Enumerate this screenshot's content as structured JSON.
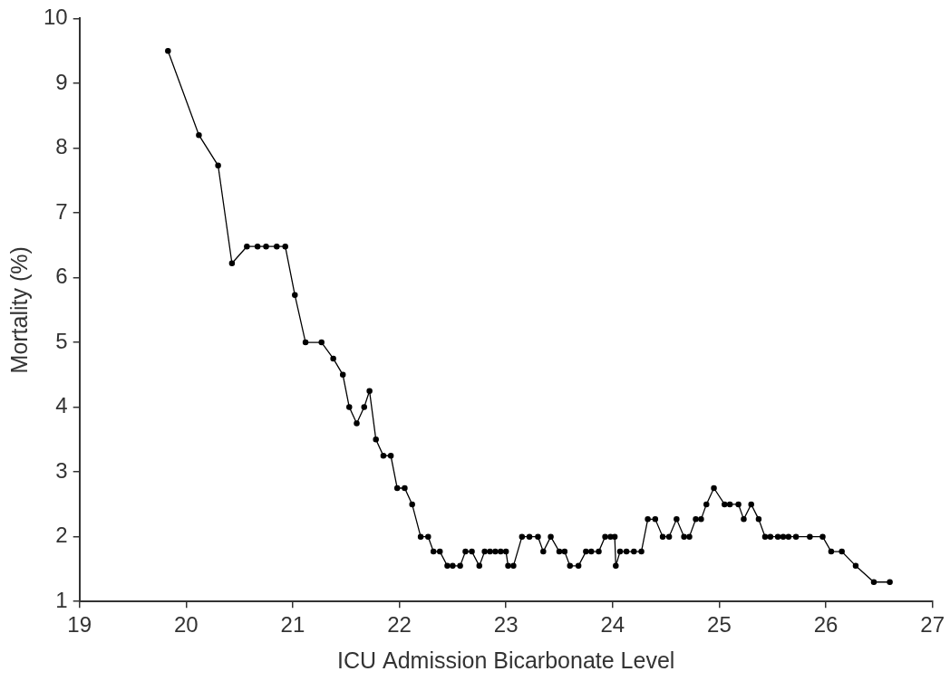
{
  "chart_data": {
    "type": "line",
    "x_label": "ICU Admission Bicarbonate Level",
    "y_label": "Mortality (%)",
    "xlim": [
      19,
      27
    ],
    "xticks": [
      19,
      20,
      21,
      22,
      23,
      24,
      25,
      26,
      27
    ],
    "ylim": [
      1,
      10
    ],
    "yticks": [
      1,
      2,
      3,
      4,
      5,
      6,
      7,
      8,
      9,
      10
    ],
    "grid": false,
    "color": "#000000",
    "marker": "circle",
    "line_style": "solid",
    "x": [
      19.83,
      20.12,
      20.3,
      20.43,
      20.57,
      20.67,
      20.75,
      20.85,
      20.93,
      21.02,
      21.12,
      21.27,
      21.38,
      21.47,
      21.53,
      21.6,
      21.67,
      21.72,
      21.78,
      21.85,
      21.92,
      21.98,
      22.05,
      22.12,
      22.2,
      22.27,
      22.32,
      22.38,
      22.45,
      22.5,
      22.57,
      22.62,
      22.68,
      22.75,
      22.8,
      22.85,
      22.9,
      22.95,
      23.0,
      23.02,
      23.07,
      23.15,
      23.22,
      23.3,
      23.35,
      23.42,
      23.5,
      23.55,
      23.6,
      23.68,
      23.75,
      23.8,
      23.87,
      23.93,
      23.98,
      24.02,
      24.03,
      24.07,
      24.13,
      24.2,
      24.27,
      24.33,
      24.4,
      24.47,
      24.53,
      24.6,
      24.67,
      24.72,
      24.78,
      24.83,
      24.88,
      24.95,
      25.05,
      25.1,
      25.18,
      25.23,
      25.3,
      25.37,
      25.43,
      25.48,
      25.55,
      25.6,
      25.65,
      25.72,
      25.85,
      25.97,
      26.05,
      26.15,
      26.28,
      26.45,
      26.6
    ],
    "values": [
      9.5,
      8.2,
      7.73,
      6.22,
      6.48,
      6.48,
      6.48,
      6.48,
      6.48,
      5.73,
      5.0,
      5.0,
      4.75,
      4.5,
      4.0,
      3.75,
      4.0,
      4.25,
      3.5,
      3.25,
      3.25,
      2.75,
      2.75,
      2.5,
      2.0,
      2.0,
      1.77,
      1.77,
      1.55,
      1.55,
      1.55,
      1.77,
      1.77,
      1.55,
      1.77,
      1.77,
      1.77,
      1.77,
      1.77,
      1.55,
      1.55,
      2.0,
      2.0,
      2.0,
      1.77,
      2.0,
      1.77,
      1.77,
      1.55,
      1.55,
      1.77,
      1.77,
      1.77,
      2.0,
      2.0,
      2.0,
      1.55,
      1.77,
      1.77,
      1.77,
      1.77,
      2.27,
      2.27,
      2.0,
      2.0,
      2.27,
      2.0,
      2.0,
      2.27,
      2.27,
      2.5,
      2.75,
      2.5,
      2.5,
      2.5,
      2.27,
      2.5,
      2.27,
      2.0,
      2.0,
      2.0,
      2.0,
      2.0,
      2.0,
      2.0,
      2.0,
      1.77,
      1.77,
      1.55,
      1.3,
      1.3
    ]
  }
}
